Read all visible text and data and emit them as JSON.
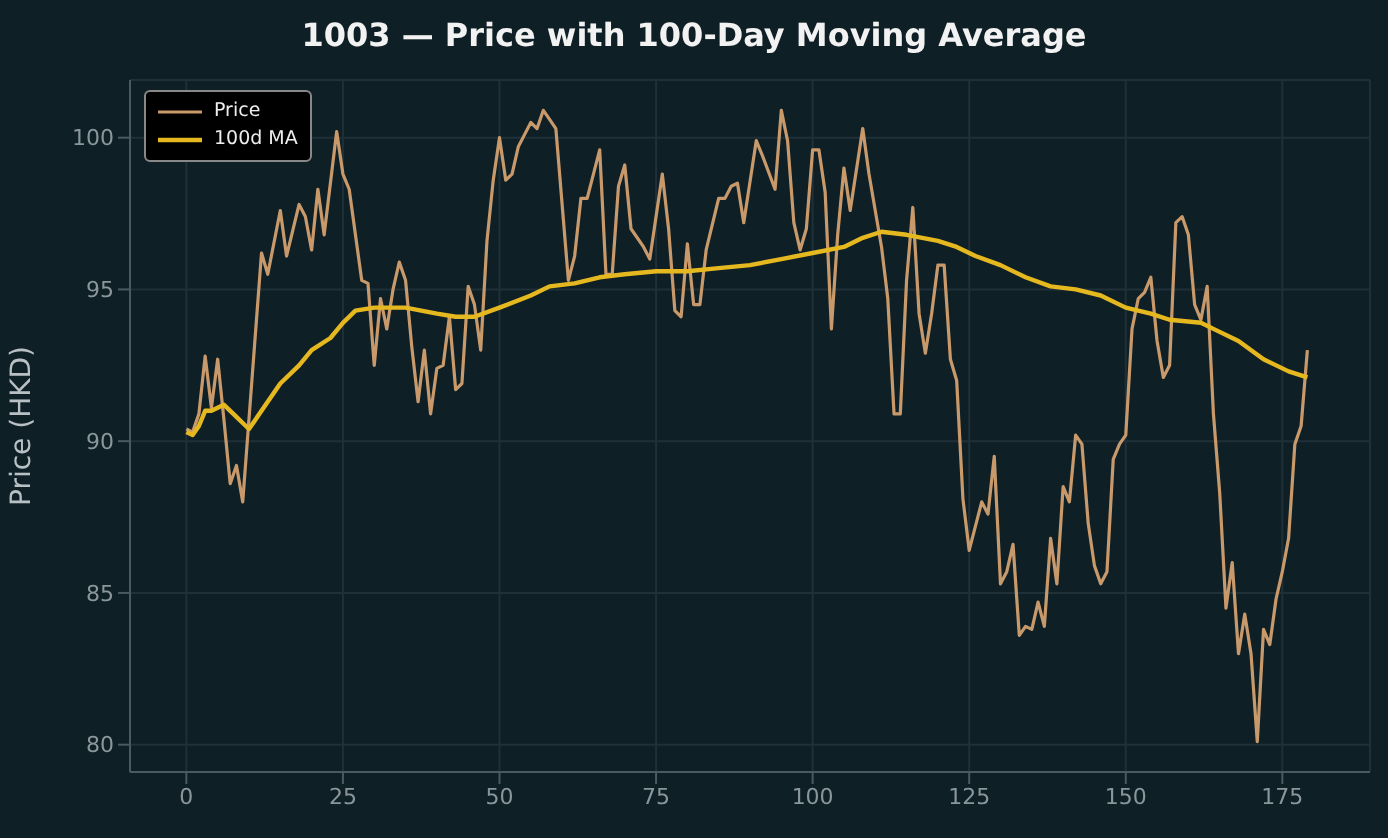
{
  "chart_data": {
    "type": "line",
    "title": "1003 — Price with 100-Day Moving Average",
    "ylabel": "Price (HKD)",
    "xlim": [
      -9,
      189
    ],
    "xticks": [
      0,
      25,
      50,
      75,
      100,
      125,
      150,
      175
    ],
    "ylim": [
      79.1,
      101.9
    ],
    "yticks": [
      80,
      85,
      90,
      95,
      100
    ],
    "grid": true,
    "legend": "top left",
    "series": [
      {
        "name": "Price",
        "color": "#c89a6b",
        "x": [
          0,
          1,
          2,
          3,
          4,
          5,
          6,
          7,
          8,
          9,
          12,
          13,
          15,
          16,
          18,
          19,
          20,
          21,
          22,
          24,
          25,
          26,
          28,
          29,
          30,
          31,
          32,
          33,
          34,
          35,
          36,
          37,
          38,
          39,
          40,
          41,
          42,
          43,
          44,
          45,
          46,
          47,
          48,
          49,
          50,
          51,
          52,
          53,
          54,
          55,
          56,
          57,
          58,
          59,
          61,
          62,
          63,
          64,
          66,
          67,
          68,
          69,
          70,
          71,
          73,
          74,
          76,
          77,
          78,
          79,
          80,
          81,
          82,
          83,
          85,
          86,
          87,
          88,
          89,
          91,
          92,
          94,
          95,
          96,
          97,
          98,
          99,
          100,
          101,
          102,
          103,
          104,
          105,
          106,
          108,
          109,
          111,
          112,
          113,
          114,
          115,
          116,
          117,
          118,
          119,
          120,
          121,
          122,
          123,
          124,
          125,
          127,
          128,
          129,
          130,
          131,
          132,
          133,
          134,
          135,
          136,
          137,
          138,
          139,
          140,
          141,
          142,
          143,
          144,
          145,
          146,
          147,
          148,
          149,
          150,
          151,
          152,
          153,
          154,
          155,
          156,
          157,
          158,
          159,
          160,
          161,
          162,
          163,
          164,
          165,
          166,
          167,
          168,
          169,
          170,
          171,
          172,
          173,
          174,
          175,
          176,
          177,
          178,
          179
        ],
        "values": [
          90.4,
          90.3,
          90.9,
          92.8,
          91.1,
          92.7,
          90.7,
          88.6,
          89.2,
          88.0,
          96.2,
          95.5,
          97.6,
          96.1,
          97.8,
          97.4,
          96.3,
          98.3,
          96.8,
          100.2,
          98.8,
          98.3,
          95.3,
          95.2,
          92.5,
          94.7,
          93.7,
          95.0,
          95.9,
          95.3,
          93.1,
          91.3,
          93.0,
          90.9,
          92.4,
          92.5,
          94.1,
          91.7,
          91.9,
          95.1,
          94.5,
          93.0,
          96.6,
          98.6,
          100.0,
          98.6,
          98.8,
          99.7,
          100.1,
          100.5,
          100.3,
          100.9,
          100.6,
          100.3,
          95.3,
          96.1,
          98.0,
          98.0,
          99.6,
          95.5,
          95.5,
          98.4,
          99.1,
          97.0,
          96.4,
          96.0,
          98.8,
          97.0,
          94.3,
          94.1,
          96.5,
          94.5,
          94.5,
          96.3,
          98.0,
          98.0,
          98.4,
          98.5,
          97.2,
          99.9,
          99.4,
          98.3,
          100.9,
          99.9,
          97.2,
          96.3,
          97.0,
          99.6,
          99.6,
          98.2,
          93.7,
          96.8,
          99.0,
          97.6,
          100.3,
          98.8,
          96.4,
          94.7,
          90.9,
          90.9,
          95.3,
          97.7,
          94.2,
          92.9,
          94.2,
          95.8,
          95.8,
          92.7,
          92.0,
          88.1,
          86.4,
          88.0,
          87.6,
          89.5,
          85.3,
          85.7,
          86.6,
          83.6,
          83.9,
          83.8,
          84.7,
          83.9,
          86.8,
          85.3,
          88.5,
          88.0,
          90.2,
          89.9,
          87.3,
          85.9,
          85.3,
          85.7,
          89.4,
          89.9,
          90.2,
          93.7,
          94.7,
          94.9,
          95.4,
          93.3,
          92.1,
          92.5,
          97.2,
          97.4,
          96.8,
          94.5,
          94.0,
          95.1,
          90.9,
          88.3,
          84.5,
          86.0,
          83.0,
          84.3,
          83.0,
          80.1,
          83.8,
          83.3,
          84.8,
          85.7,
          86.8,
          89.9,
          90.5,
          93.0
        ]
      },
      {
        "name": "100d MA",
        "color": "#e6b820",
        "x": [
          0,
          1,
          2,
          3,
          4,
          5,
          6,
          7,
          8,
          9,
          10,
          12,
          15,
          18,
          20,
          23,
          25,
          27,
          30,
          35,
          40,
          43,
          46,
          50,
          55,
          58,
          62,
          66,
          70,
          75,
          80,
          85,
          90,
          95,
          100,
          105,
          108,
          111,
          115,
          120,
          123,
          126,
          130,
          134,
          138,
          142,
          146,
          150,
          154,
          157,
          162,
          164,
          168,
          172,
          176,
          179
        ],
        "values": [
          90.3,
          90.2,
          90.5,
          91.0,
          91.0,
          91.1,
          91.2,
          91.0,
          90.8,
          90.6,
          90.4,
          91.0,
          91.9,
          92.5,
          93.0,
          93.4,
          93.9,
          94.3,
          94.4,
          94.4,
          94.2,
          94.1,
          94.1,
          94.4,
          94.8,
          95.1,
          95.2,
          95.4,
          95.5,
          95.6,
          95.6,
          95.7,
          95.8,
          96.0,
          96.2,
          96.4,
          96.7,
          96.9,
          96.8,
          96.6,
          96.4,
          96.1,
          95.8,
          95.4,
          95.1,
          95.0,
          94.8,
          94.4,
          94.2,
          94.0,
          93.9,
          93.7,
          93.3,
          92.7,
          92.3,
          92.1
        ]
      }
    ]
  }
}
